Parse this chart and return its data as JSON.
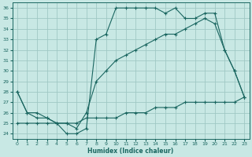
{
  "xlabel": "Humidex (Indice chaleur)",
  "background_color": "#c8e8e4",
  "grid_color": "#a0c8c4",
  "line_color": "#1a6660",
  "xlim": [
    -0.5,
    23.5
  ],
  "ylim": [
    23.5,
    36.5
  ],
  "xticks": [
    0,
    1,
    2,
    3,
    4,
    5,
    6,
    7,
    8,
    9,
    10,
    11,
    12,
    13,
    14,
    15,
    16,
    17,
    18,
    19,
    20,
    21,
    22,
    23
  ],
  "yticks": [
    24,
    25,
    26,
    27,
    28,
    29,
    30,
    31,
    32,
    33,
    34,
    35,
    36
  ],
  "line1_x": [
    0,
    1,
    2,
    3,
    4,
    5,
    6,
    7,
    8,
    9,
    10,
    11,
    12,
    13,
    14,
    15,
    16,
    17,
    18,
    19,
    20,
    21,
    22,
    23
  ],
  "line1_y": [
    28,
    26,
    25.5,
    25.5,
    25,
    24,
    24,
    24.5,
    33,
    33.5,
    36,
    36,
    36,
    36,
    36,
    35.5,
    36,
    35,
    35,
    35.5,
    35.5,
    32,
    30,
    27.5
  ],
  "line2_x": [
    0,
    1,
    2,
    3,
    4,
    5,
    6,
    7,
    8,
    9,
    10,
    11,
    12,
    13,
    14,
    15,
    16,
    17,
    18,
    19,
    20,
    21,
    22,
    23
  ],
  "line2_y": [
    25,
    25,
    25,
    25,
    25,
    25,
    25,
    25.5,
    25.5,
    25.5,
    25.5,
    26,
    26,
    26,
    26.5,
    26.5,
    26.5,
    27,
    27,
    27,
    27,
    27,
    27,
    27.5
  ],
  "line3_x": [
    0,
    1,
    2,
    3,
    4,
    5,
    6,
    7,
    8,
    9,
    10,
    11,
    12,
    13,
    14,
    15,
    16,
    17,
    18,
    19,
    20,
    21,
    22,
    23
  ],
  "line3_y": [
    28,
    26,
    26,
    25.5,
    25,
    25,
    24.5,
    26,
    29,
    30,
    31,
    31.5,
    32,
    32.5,
    33,
    33.5,
    33.5,
    34,
    34.5,
    35,
    34.5,
    32,
    30,
    27.5
  ]
}
